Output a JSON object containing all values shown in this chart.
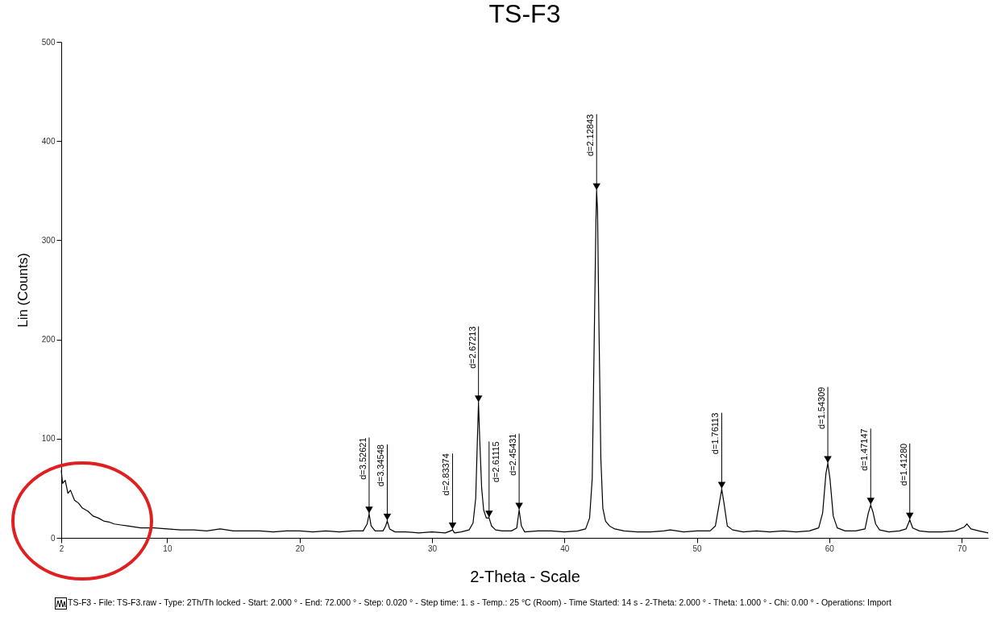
{
  "chart_data": {
    "type": "line",
    "title": "TS-F3",
    "xlabel": "2-Theta - Scale",
    "ylabel": "Lin (Counts)",
    "x": [
      2.0,
      2.1,
      2.3,
      2.5,
      2.7,
      3.0,
      3.3,
      3.6,
      4.0,
      4.4,
      4.8,
      5.2,
      5.6,
      6.0,
      6.5,
      7.0,
      7.5,
      8.0,
      9,
      10,
      11,
      12,
      13,
      14,
      15,
      16,
      17,
      18,
      19,
      20,
      21,
      22,
      23,
      24,
      24.8,
      25.1,
      25.25,
      25.4,
      25.7,
      26.3,
      26.5,
      26.62,
      26.8,
      27.2,
      28,
      29,
      30,
      31,
      31.4,
      31.55,
      31.7,
      32.2,
      32.8,
      33.1,
      33.3,
      33.45,
      33.51,
      33.6,
      33.75,
      33.9,
      34.1,
      34.31,
      34.5,
      34.8,
      35.3,
      36,
      36.4,
      36.58,
      36.75,
      37,
      38,
      39,
      40,
      41,
      41.6,
      41.9,
      42.1,
      42.25,
      42.38,
      42.43,
      42.5,
      42.6,
      42.75,
      42.9,
      43.1,
      43.4,
      43.8,
      44.5,
      45.5,
      46.5,
      47.5,
      48,
      49,
      50,
      51.0,
      51.4,
      51.7,
      51.88,
      52.05,
      52.3,
      52.7,
      53.5,
      54.5,
      55.5,
      56.5,
      57.5,
      58.5,
      59.2,
      59.5,
      59.75,
      59.89,
      60.05,
      60.3,
      60.6,
      61.2,
      62,
      62.7,
      62.95,
      63.13,
      63.3,
      63.5,
      63.8,
      64.5,
      65.3,
      65.8,
      66.08,
      66.3,
      66.8,
      67.5,
      68.5,
      69.5,
      70.2,
      70.4,
      70.7,
      71.3,
      72
    ],
    "series": [
      {
        "color": "#000000",
        "values": [
          68,
          55,
          58,
          45,
          48,
          38,
          35,
          30,
          27,
          22,
          20,
          17,
          16,
          14,
          13,
          12,
          11,
          10,
          10,
          9,
          8,
          8,
          7,
          9,
          7,
          7,
          7,
          6,
          7,
          7,
          6,
          7,
          6,
          7,
          7,
          14,
          24,
          12,
          7,
          7,
          12,
          17,
          9,
          6,
          6,
          5,
          6,
          5,
          7,
          8,
          5,
          6,
          8,
          15,
          40,
          110,
          136,
          100,
          50,
          28,
          20,
          20,
          12,
          8,
          7,
          7,
          10,
          28,
          12,
          6,
          7,
          7,
          6,
          7,
          9,
          20,
          60,
          200,
          320,
          350,
          330,
          220,
          80,
          30,
          17,
          12,
          9,
          7,
          6,
          6,
          7,
          8,
          6,
          7,
          7,
          12,
          35,
          49,
          35,
          12,
          8,
          6,
          7,
          6,
          7,
          6,
          7,
          10,
          25,
          65,
          75,
          60,
          22,
          10,
          7,
          7,
          9,
          25,
          33,
          26,
          14,
          8,
          6,
          7,
          9,
          18,
          10,
          7,
          6,
          6,
          7,
          11,
          14,
          9,
          7,
          5
        ]
      }
    ],
    "xlim": [
      2,
      72
    ],
    "xticks": [
      2,
      10,
      20,
      30,
      40,
      50,
      60,
      70
    ],
    "ylim": [
      0,
      500
    ],
    "yticks": [
      0,
      100,
      200,
      300,
      400,
      500
    ],
    "grid": false,
    "annotations": [
      {
        "text": "d=3.52621",
        "x": 25.25,
        "y": 24
      },
      {
        "text": "d=3.34548",
        "x": 26.62,
        "y": 17
      },
      {
        "text": "d=2.83374",
        "x": 31.55,
        "y": 8
      },
      {
        "text": "d=2.67213",
        "x": 33.51,
        "y": 136
      },
      {
        "text": "d=2.61115",
        "x": 34.31,
        "y": 20
      },
      {
        "text": "d=2.45431",
        "x": 36.58,
        "y": 28
      },
      {
        "text": "d=2.12843",
        "x": 42.43,
        "y": 350
      },
      {
        "text": "d=1.76113",
        "x": 51.88,
        "y": 49
      },
      {
        "text": "d=1.54309",
        "x": 59.89,
        "y": 75
      },
      {
        "text": "d=1.47147",
        "x": 63.13,
        "y": 33
      },
      {
        "text": "d=1.41280",
        "x": 66.08,
        "y": 18
      },
      "TS-F3 - File: TS-F3.raw - Type: 2Th/Th locked - Start: 2.000 ° - End: 72.000 ° - Step: 0.020 ° - Step time: 1. s - Temp.: 25 °C (Room) - Time Started: 14 s - 2-Theta: 2.000 ° - Theta: 1.000 ° - Chi: 0.00 ° - Operations: Import"
    ]
  }
}
